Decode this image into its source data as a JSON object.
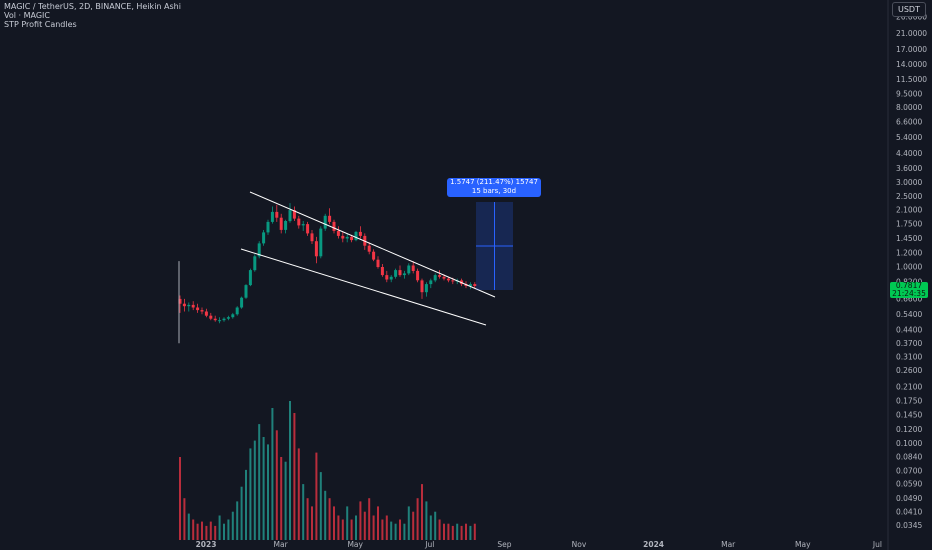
{
  "legend": {
    "title": "MAGIC / TetherUS, 2D, BINANCE, Heikin Ashi",
    "indicator1": "Vol · MAGIC",
    "indicator2": "STP Profit Candles"
  },
  "currency_button": "USDT",
  "last_price": {
    "value": "0.7817",
    "countdown": "21:24:35",
    "color": "#00c853"
  },
  "measure": {
    "line1": "1.5747 (211.47%) 15747",
    "line2": "15 bars, 30d",
    "from_price": 0.757,
    "to_price": 2.33
  },
  "colors": {
    "background": "#131722",
    "up": "#26a69a",
    "up_candle": "#089981",
    "down": "#f23645",
    "trendline": "#ffffff",
    "measure": "#2962ff"
  },
  "chart_data": {
    "type": "candlestick",
    "title": "MAGIC / TetherUS, 2D, BINANCE, Heikin Ashi",
    "y_scale": "log",
    "y_ticks": [
      "26.0000",
      "21.0000",
      "17.0000",
      "14.0000",
      "11.5000",
      "9.5000",
      "8.0000",
      "6.6000",
      "5.4000",
      "4.4000",
      "3.6000",
      "3.0000",
      "2.5000",
      "2.1000",
      "1.7500",
      "1.4500",
      "1.2000",
      "1.0000",
      "0.8200",
      "0.6600",
      "0.5400",
      "0.4400",
      "0.3700",
      "0.3100",
      "0.2600",
      "0.2100",
      "0.1750",
      "0.1450",
      "0.1200",
      "0.1000",
      "0.0840",
      "0.0700",
      "0.0590",
      "0.0490",
      "0.0410",
      "0.0345"
    ],
    "x_ticks": [
      "2023",
      "Mar",
      "May",
      "Jul",
      "Sep",
      "Nov",
      "2024",
      "Mar",
      "May",
      "Jul"
    ],
    "candles": [
      [
        0.66,
        0.69,
        0.55,
        0.62
      ],
      [
        0.62,
        0.66,
        0.56,
        0.6
      ],
      [
        0.6,
        0.63,
        0.56,
        0.61
      ],
      [
        0.61,
        0.64,
        0.57,
        0.59
      ],
      [
        0.59,
        0.62,
        0.55,
        0.57
      ],
      [
        0.57,
        0.59,
        0.54,
        0.56
      ],
      [
        0.56,
        0.58,
        0.52,
        0.53
      ],
      [
        0.53,
        0.55,
        0.5,
        0.51
      ],
      [
        0.51,
        0.53,
        0.49,
        0.5
      ],
      [
        0.5,
        0.52,
        0.48,
        0.5
      ],
      [
        0.5,
        0.52,
        0.49,
        0.51
      ],
      [
        0.51,
        0.53,
        0.5,
        0.52
      ],
      [
        0.52,
        0.55,
        0.51,
        0.54
      ],
      [
        0.54,
        0.6,
        0.53,
        0.59
      ],
      [
        0.59,
        0.68,
        0.58,
        0.67
      ],
      [
        0.67,
        0.8,
        0.66,
        0.79
      ],
      [
        0.79,
        0.98,
        0.78,
        0.96
      ],
      [
        0.96,
        1.18,
        0.94,
        1.15
      ],
      [
        1.15,
        1.4,
        1.12,
        1.36
      ],
      [
        1.36,
        1.62,
        1.32,
        1.57
      ],
      [
        1.57,
        1.85,
        1.52,
        1.8
      ],
      [
        1.8,
        2.2,
        1.76,
        2.05
      ],
      [
        2.05,
        2.25,
        1.8,
        1.9
      ],
      [
        1.9,
        2.0,
        1.55,
        1.62
      ],
      [
        1.62,
        1.85,
        1.55,
        1.82
      ],
      [
        1.82,
        2.3,
        1.78,
        2.1
      ],
      [
        2.1,
        2.2,
        1.82,
        1.88
      ],
      [
        1.88,
        1.95,
        1.65,
        1.72
      ],
      [
        1.72,
        1.82,
        1.6,
        1.75
      ],
      [
        1.75,
        1.8,
        1.5,
        1.55
      ],
      [
        1.55,
        1.62,
        1.35,
        1.4
      ],
      [
        1.4,
        1.48,
        1.05,
        1.15
      ],
      [
        1.15,
        1.7,
        1.12,
        1.65
      ],
      [
        1.65,
        2.0,
        1.6,
        1.95
      ],
      [
        1.95,
        2.15,
        1.75,
        1.8
      ],
      [
        1.8,
        1.85,
        1.55,
        1.6
      ],
      [
        1.6,
        1.7,
        1.45,
        1.5
      ],
      [
        1.5,
        1.58,
        1.38,
        1.45
      ],
      [
        1.45,
        1.55,
        1.38,
        1.48
      ],
      [
        1.48,
        1.52,
        1.38,
        1.42
      ],
      [
        1.42,
        1.6,
        1.4,
        1.58
      ],
      [
        1.58,
        1.7,
        1.45,
        1.5
      ],
      [
        1.5,
        1.55,
        1.25,
        1.32
      ],
      [
        1.32,
        1.38,
        1.18,
        1.22
      ],
      [
        1.22,
        1.26,
        1.08,
        1.1
      ],
      [
        1.1,
        1.15,
        0.98,
        1.0
      ],
      [
        1.0,
        1.04,
        0.88,
        0.9
      ],
      [
        0.9,
        0.95,
        0.82,
        0.85
      ],
      [
        0.85,
        0.9,
        0.82,
        0.88
      ],
      [
        0.88,
        0.98,
        0.86,
        0.96
      ],
      [
        0.96,
        1.02,
        0.88,
        0.9
      ],
      [
        0.9,
        0.95,
        0.86,
        0.92
      ],
      [
        0.92,
        1.05,
        0.9,
        1.02
      ],
      [
        1.02,
        1.08,
        0.92,
        0.95
      ],
      [
        0.95,
        0.98,
        0.82,
        0.84
      ],
      [
        0.84,
        0.86,
        0.66,
        0.72
      ],
      [
        0.72,
        0.82,
        0.68,
        0.8
      ],
      [
        0.8,
        0.86,
        0.76,
        0.84
      ],
      [
        0.84,
        0.92,
        0.82,
        0.9
      ],
      [
        0.9,
        0.96,
        0.86,
        0.88
      ],
      [
        0.88,
        0.91,
        0.84,
        0.86
      ],
      [
        0.86,
        0.88,
        0.82,
        0.84
      ],
      [
        0.84,
        0.87,
        0.8,
        0.83
      ],
      [
        0.83,
        0.86,
        0.8,
        0.84
      ],
      [
        0.84,
        0.86,
        0.78,
        0.8
      ],
      [
        0.8,
        0.83,
        0.76,
        0.78
      ],
      [
        0.78,
        0.82,
        0.75,
        0.8
      ],
      [
        0.8,
        0.82,
        0.76,
        0.78
      ]
    ],
    "volume": [
      0.085,
      0.05,
      0.041,
      0.038,
      0.036,
      0.037,
      0.035,
      0.037,
      0.035,
      0.04,
      0.036,
      0.038,
      0.042,
      0.048,
      0.058,
      0.072,
      0.095,
      0.105,
      0.13,
      0.11,
      0.1,
      0.16,
      0.12,
      0.085,
      0.08,
      0.175,
      0.15,
      0.095,
      0.06,
      0.05,
      0.045,
      0.09,
      0.07,
      0.055,
      0.05,
      0.045,
      0.04,
      0.038,
      0.045,
      0.038,
      0.04,
      0.048,
      0.042,
      0.05,
      0.04,
      0.045,
      0.038,
      0.04,
      0.037,
      0.036,
      0.038,
      0.036,
      0.045,
      0.042,
      0.05,
      0.06,
      0.048,
      0.04,
      0.042,
      0.038,
      0.036,
      0.036,
      0.035,
      0.036,
      0.035,
      0.036,
      0.035,
      0.036
    ]
  }
}
